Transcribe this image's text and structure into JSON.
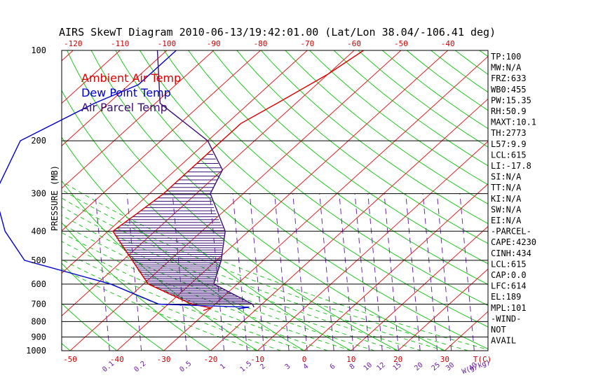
{
  "chart_data": {
    "type": "skewt",
    "title": "AIRS SkewT Diagram 2010-06-13/19:42:01.00 (Lat/Lon 38.04/-106.41 deg)",
    "ylabel": "PRESSURE (MB)",
    "xunit_temp": "T(C)",
    "xunit_mix": "W(g/kg)",
    "pressure_ticks": [
      100,
      200,
      300,
      400,
      500,
      600,
      700,
      800,
      900,
      1000
    ],
    "pressure_tick_labels": [
      "100",
      "200",
      "300",
      "400",
      "500",
      "600",
      "700",
      "800",
      "900",
      "1000"
    ],
    "top_temp_labels": [
      "-120",
      "-110",
      "-100",
      "-90",
      "-80",
      "-70",
      "-60",
      "-50",
      "-40"
    ],
    "bottom_temp_labels": [
      "-50",
      "-40",
      "-30",
      "-20",
      "-10",
      "0",
      "10",
      "20",
      "30"
    ],
    "mixing_ratio_labels": [
      "0.1",
      "0.2",
      "0.5",
      "1",
      "1.5",
      "2",
      "3",
      "4",
      "6",
      "8",
      "10",
      "12",
      "15",
      "20",
      "25",
      "30",
      "40"
    ],
    "legend": [
      {
        "label": "Ambient Air Temp",
        "color": "#dd0000"
      },
      {
        "label": "Dew Point Temp",
        "color": "#0000cc"
      },
      {
        "label": "Air Parcel Temp",
        "color": "#3c0f78"
      }
    ],
    "series": [
      {
        "name": "Ambient Air Temp",
        "color": "#dd0000",
        "points": [
          [
            -58,
            100
          ],
          [
            -60,
            120
          ],
          [
            -64,
            150
          ],
          [
            -67,
            175
          ],
          [
            -67,
            200
          ],
          [
            -67,
            230
          ],
          [
            -67,
            260
          ],
          [
            -67,
            300
          ],
          [
            -68,
            350
          ],
          [
            -69,
            400
          ],
          [
            -58,
            500
          ],
          [
            -49,
            600
          ],
          [
            -35,
            700
          ],
          [
            -30,
            720
          ],
          [
            -31,
            735
          ]
        ]
      },
      {
        "name": "Dew Point Temp",
        "color": "#0000cc",
        "points": [
          [
            -98,
            100
          ],
          [
            -98,
            130
          ],
          [
            -103,
            150
          ],
          [
            -110,
            200
          ],
          [
            -103,
            300
          ],
          [
            -92,
            400
          ],
          [
            -81,
            500
          ],
          [
            -57,
            600
          ],
          [
            -42,
            700
          ],
          [
            -22,
            716
          ],
          [
            -24,
            725
          ]
        ]
      },
      {
        "name": "Air Parcel Temp",
        "color": "#3c0f78",
        "points": [
          [
            -102,
            100
          ],
          [
            -89,
            150
          ],
          [
            -70,
            200
          ],
          [
            -60,
            250
          ],
          [
            -57,
            300
          ],
          [
            -45,
            400
          ],
          [
            -39,
            500
          ],
          [
            -35,
            600
          ],
          [
            -22,
            700
          ],
          [
            -21,
            716
          ]
        ]
      }
    ]
  },
  "side_panel": [
    "TP:100",
    "MW:N/A",
    "FRZ:633",
    "WB0:455",
    "PW:15.35",
    "RH:50.9",
    "MAXT:10.1",
    "TH:2773",
    "L57:9.9",
    "LCL:615",
    "LI:-17.8",
    "SI:N/A",
    "TT:N/A",
    "KI:N/A",
    "SW:N/A",
    "EI:N/A",
    "-PARCEL-",
    "CAPE:4230",
    "CINH:434",
    "LCL:615",
    "CAP:0.0",
    "LFC:614",
    "EL:189",
    "MPL:101",
    "-WIND-",
    "NOT",
    "AVAIL"
  ]
}
